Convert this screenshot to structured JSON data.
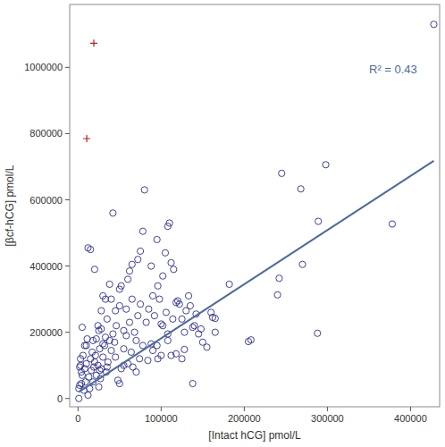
{
  "chart_data": {
    "type": "scatter",
    "x_label": "[Intact hCG] pmol/L",
    "y_label": "[βcf-hCG] pmol/L",
    "annotations": [
      "R² = 0.43"
    ],
    "xlim": [
      -10000,
      435000
    ],
    "ylim": [
      -25000,
      1190000
    ],
    "xticks": [
      0,
      100000,
      200000,
      300000,
      400000
    ],
    "yticks": [
      0,
      200000,
      400000,
      600000,
      800000,
      1000000
    ],
    "grid": false,
    "series": [
      {
        "type": "scatter",
        "marker": "circle",
        "color": "#2b3088",
        "x": [
          428000,
          378000,
          298000,
          289000,
          288000,
          268000,
          270000,
          245000,
          242000,
          240000,
          208000,
          205000,
          182000,
          165000,
          165000,
          162000,
          145000,
          140000,
          138000,
          133000,
          128000,
          125000,
          120000,
          118000,
          115000,
          112000,
          110000,
          108000,
          105000,
          102000,
          100000,
          98000,
          95000,
          90000,
          88000,
          80000,
          78000,
          75000,
          72000,
          70000,
          65000,
          62000,
          60000,
          58000,
          55000,
          52000,
          50000,
          42000,
          40000,
          38000,
          35000,
          33000,
          30000,
          28000,
          25000,
          20000,
          15000,
          12000,
          10000,
          5000,
          3000,
          2000,
          1000,
          102000,
          108000,
          112000,
          118000,
          125000,
          130000,
          135000,
          142000,
          150000,
          155000,
          160000,
          148000,
          138000,
          108000,
          95000,
          92000,
          85000,
          82000,
          75000,
          72000,
          68000,
          66000,
          62000,
          58000,
          55000,
          52000,
          50000,
          48000,
          45000,
          42000,
          40000,
          38000,
          36000,
          34000,
          32000,
          30000,
          28000,
          27000,
          26000,
          25000,
          24000,
          22000,
          21000,
          20000,
          19000,
          18000,
          17000,
          16000,
          15000,
          14000,
          13000,
          12000,
          11000,
          10000,
          9000,
          8000,
          7000,
          6000,
          5000,
          4000,
          3000,
          2000,
          1000,
          22000,
          24000,
          26000,
          30000,
          35000,
          44000,
          46000,
          55000,
          60000,
          64000,
          70000,
          74000,
          78000,
          84000,
          88000,
          96000,
          100000,
          106000,
          114000,
          122000,
          128000,
          45000,
          50000,
          33000,
          28000,
          18000,
          8000,
          4000,
          65000,
          90000,
          96000
        ],
        "values": [
          1130000,
          527000,
          706000,
          535000,
          197000,
          633000,
          405000,
          680000,
          363000,
          313000,
          177000,
          172000,
          345000,
          200000,
          242000,
          245000,
          195000,
          220000,
          45000,
          310000,
          148000,
          120000,
          295000,
          290000,
          390000,
          410000,
          530000,
          520000,
          440000,
          370000,
          225000,
          300000,
          480000,
          145000,
          400000,
          630000,
          505000,
          445000,
          420000,
          175000,
          405000,
          385000,
          360000,
          270000,
          150000,
          340000,
          330000,
          560000,
          300000,
          345000,
          240000,
          300000,
          310000,
          265000,
          205000,
          390000,
          450000,
          455000,
          160000,
          215000,
          100000,
          40000,
          0,
          220000,
          195000,
          130000,
          135000,
          240000,
          265000,
          280000,
          255000,
          170000,
          155000,
          260000,
          210000,
          215000,
          175000,
          160000,
          250000,
          270000,
          230000,
          285000,
          250000,
          200000,
          95000,
          230000,
          190000,
          100000,
          90000,
          45000,
          55000,
          125000,
          195000,
          145000,
          175000,
          110000,
          80000,
          160000,
          125000,
          90000,
          60000,
          150000,
          35000,
          100000,
          70000,
          130000,
          110000,
          95000,
          50000,
          140000,
          85000,
          120000,
          30000,
          65000,
          10000,
          180000,
          105000,
          50000,
          90000,
          25000,
          130000,
          70000,
          45000,
          120000,
          95000,
          30000,
          180000,
          220000,
          85000,
          165000,
          95000,
          170000,
          220000,
          205000,
          105000,
          140000,
          80000,
          120000,
          160000,
          115000,
          165000,
          120000,
          130000,
          260000,
          240000,
          285000,
          200000,
          265000,
          280000,
          185000,
          210000,
          175000,
          160000,
          80000,
          300000,
          310000,
          340000
        ]
      },
      {
        "type": "scatter",
        "marker": "plus",
        "color": "#b22222",
        "x": [
          19000,
          10500
        ],
        "values": [
          1073000,
          785000
        ]
      },
      {
        "type": "line",
        "line_style": "solid",
        "color": "#4d6b9c",
        "x": [
          1000,
          428000
        ],
        "values": [
          20000,
          718000
        ]
      }
    ]
  }
}
